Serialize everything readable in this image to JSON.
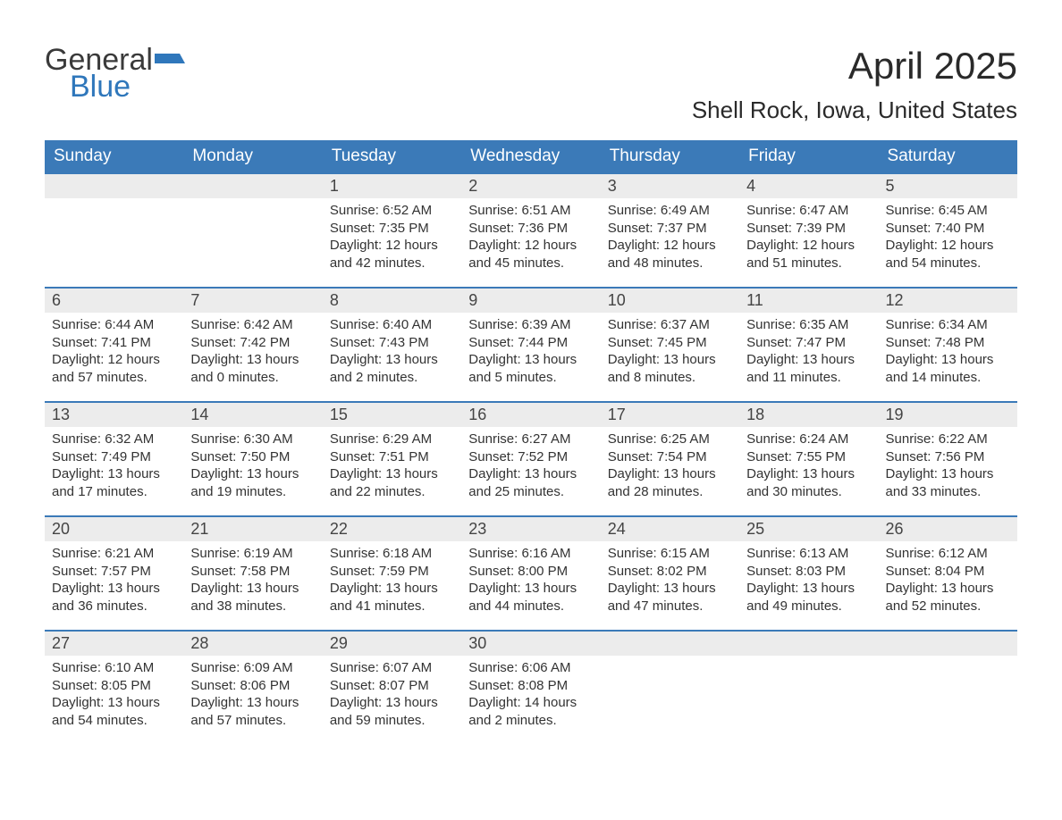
{
  "logo": {
    "word1": "General",
    "word2": "Blue"
  },
  "title": "April 2025",
  "location": "Shell Rock, Iowa, United States",
  "colors": {
    "header_bg": "#3b7ab8",
    "header_text": "#ffffff",
    "day_header_bg": "#ececec",
    "day_border": "#3b7ab8",
    "text": "#333333",
    "logo_blue": "#2f77bb"
  },
  "day_headers": [
    "Sunday",
    "Monday",
    "Tuesday",
    "Wednesday",
    "Thursday",
    "Friday",
    "Saturday"
  ],
  "weeks": [
    [
      null,
      null,
      {
        "n": "1",
        "sunrise": "6:52 AM",
        "sunset": "7:35 PM",
        "dl1": "Daylight: 12 hours",
        "dl2": "and 42 minutes."
      },
      {
        "n": "2",
        "sunrise": "6:51 AM",
        "sunset": "7:36 PM",
        "dl1": "Daylight: 12 hours",
        "dl2": "and 45 minutes."
      },
      {
        "n": "3",
        "sunrise": "6:49 AM",
        "sunset": "7:37 PM",
        "dl1": "Daylight: 12 hours",
        "dl2": "and 48 minutes."
      },
      {
        "n": "4",
        "sunrise": "6:47 AM",
        "sunset": "7:39 PM",
        "dl1": "Daylight: 12 hours",
        "dl2": "and 51 minutes."
      },
      {
        "n": "5",
        "sunrise": "6:45 AM",
        "sunset": "7:40 PM",
        "dl1": "Daylight: 12 hours",
        "dl2": "and 54 minutes."
      }
    ],
    [
      {
        "n": "6",
        "sunrise": "6:44 AM",
        "sunset": "7:41 PM",
        "dl1": "Daylight: 12 hours",
        "dl2": "and 57 minutes."
      },
      {
        "n": "7",
        "sunrise": "6:42 AM",
        "sunset": "7:42 PM",
        "dl1": "Daylight: 13 hours",
        "dl2": "and 0 minutes."
      },
      {
        "n": "8",
        "sunrise": "6:40 AM",
        "sunset": "7:43 PM",
        "dl1": "Daylight: 13 hours",
        "dl2": "and 2 minutes."
      },
      {
        "n": "9",
        "sunrise": "6:39 AM",
        "sunset": "7:44 PM",
        "dl1": "Daylight: 13 hours",
        "dl2": "and 5 minutes."
      },
      {
        "n": "10",
        "sunrise": "6:37 AM",
        "sunset": "7:45 PM",
        "dl1": "Daylight: 13 hours",
        "dl2": "and 8 minutes."
      },
      {
        "n": "11",
        "sunrise": "6:35 AM",
        "sunset": "7:47 PM",
        "dl1": "Daylight: 13 hours",
        "dl2": "and 11 minutes."
      },
      {
        "n": "12",
        "sunrise": "6:34 AM",
        "sunset": "7:48 PM",
        "dl1": "Daylight: 13 hours",
        "dl2": "and 14 minutes."
      }
    ],
    [
      {
        "n": "13",
        "sunrise": "6:32 AM",
        "sunset": "7:49 PM",
        "dl1": "Daylight: 13 hours",
        "dl2": "and 17 minutes."
      },
      {
        "n": "14",
        "sunrise": "6:30 AM",
        "sunset": "7:50 PM",
        "dl1": "Daylight: 13 hours",
        "dl2": "and 19 minutes."
      },
      {
        "n": "15",
        "sunrise": "6:29 AM",
        "sunset": "7:51 PM",
        "dl1": "Daylight: 13 hours",
        "dl2": "and 22 minutes."
      },
      {
        "n": "16",
        "sunrise": "6:27 AM",
        "sunset": "7:52 PM",
        "dl1": "Daylight: 13 hours",
        "dl2": "and 25 minutes."
      },
      {
        "n": "17",
        "sunrise": "6:25 AM",
        "sunset": "7:54 PM",
        "dl1": "Daylight: 13 hours",
        "dl2": "and 28 minutes."
      },
      {
        "n": "18",
        "sunrise": "6:24 AM",
        "sunset": "7:55 PM",
        "dl1": "Daylight: 13 hours",
        "dl2": "and 30 minutes."
      },
      {
        "n": "19",
        "sunrise": "6:22 AM",
        "sunset": "7:56 PM",
        "dl1": "Daylight: 13 hours",
        "dl2": "and 33 minutes."
      }
    ],
    [
      {
        "n": "20",
        "sunrise": "6:21 AM",
        "sunset": "7:57 PM",
        "dl1": "Daylight: 13 hours",
        "dl2": "and 36 minutes."
      },
      {
        "n": "21",
        "sunrise": "6:19 AM",
        "sunset": "7:58 PM",
        "dl1": "Daylight: 13 hours",
        "dl2": "and 38 minutes."
      },
      {
        "n": "22",
        "sunrise": "6:18 AM",
        "sunset": "7:59 PM",
        "dl1": "Daylight: 13 hours",
        "dl2": "and 41 minutes."
      },
      {
        "n": "23",
        "sunrise": "6:16 AM",
        "sunset": "8:00 PM",
        "dl1": "Daylight: 13 hours",
        "dl2": "and 44 minutes."
      },
      {
        "n": "24",
        "sunrise": "6:15 AM",
        "sunset": "8:02 PM",
        "dl1": "Daylight: 13 hours",
        "dl2": "and 47 minutes."
      },
      {
        "n": "25",
        "sunrise": "6:13 AM",
        "sunset": "8:03 PM",
        "dl1": "Daylight: 13 hours",
        "dl2": "and 49 minutes."
      },
      {
        "n": "26",
        "sunrise": "6:12 AM",
        "sunset": "8:04 PM",
        "dl1": "Daylight: 13 hours",
        "dl2": "and 52 minutes."
      }
    ],
    [
      {
        "n": "27",
        "sunrise": "6:10 AM",
        "sunset": "8:05 PM",
        "dl1": "Daylight: 13 hours",
        "dl2": "and 54 minutes."
      },
      {
        "n": "28",
        "sunrise": "6:09 AM",
        "sunset": "8:06 PM",
        "dl1": "Daylight: 13 hours",
        "dl2": "and 57 minutes."
      },
      {
        "n": "29",
        "sunrise": "6:07 AM",
        "sunset": "8:07 PM",
        "dl1": "Daylight: 13 hours",
        "dl2": "and 59 minutes."
      },
      {
        "n": "30",
        "sunrise": "6:06 AM",
        "sunset": "8:08 PM",
        "dl1": "Daylight: 14 hours",
        "dl2": "and 2 minutes."
      },
      null,
      null,
      null
    ]
  ],
  "labels": {
    "sunrise_prefix": "Sunrise: ",
    "sunset_prefix": "Sunset: "
  }
}
